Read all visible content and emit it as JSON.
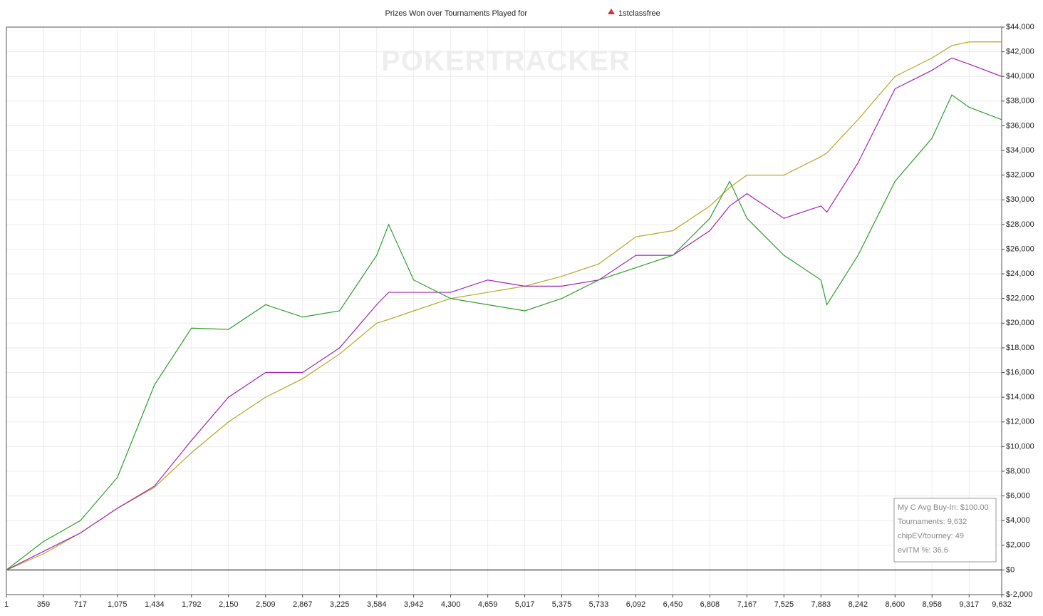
{
  "chart_data": {
    "type": "line",
    "title": "Prizes Won over Tournaments Played for",
    "player": "1stclassfree",
    "watermark": "POKERTRACKER",
    "stats": [
      "My C Avg Buy-In: $100.00",
      "Tournaments: 9,632",
      "chipEV/tourney: 49",
      "evITM %: 36.6"
    ],
    "x": [
      1,
      359,
      717,
      1075,
      1434,
      1792,
      2150,
      2509,
      2867,
      3225,
      3584,
      3700,
      3942,
      4300,
      4659,
      5017,
      5375,
      5733,
      6092,
      6450,
      6808,
      7000,
      7167,
      7525,
      7883,
      7940,
      8242,
      8600,
      8958,
      9150,
      9317,
      9632
    ],
    "series": [
      {
        "color": "#b5a824",
        "values": [
          0,
          1300,
          3000,
          5000,
          6700,
          9500,
          12000,
          14000,
          15500,
          17500,
          20000,
          20300,
          21000,
          22000,
          22500,
          23000,
          23800,
          24800,
          27000,
          27500,
          29500,
          31000,
          32000,
          32000,
          33500,
          33800,
          36500,
          40000,
          41500,
          42500,
          42800,
          42800
        ]
      },
      {
        "color": "#a424b4",
        "values": [
          0,
          1500,
          3000,
          5000,
          6800,
          10500,
          14000,
          16000,
          16000,
          18000,
          21500,
          22500,
          22500,
          22500,
          23500,
          23000,
          23000,
          23500,
          25500,
          25500,
          27500,
          29500,
          30500,
          28500,
          29500,
          29000,
          33000,
          39000,
          40500,
          41500,
          41000,
          40000
        ]
      },
      {
        "color": "#2ca02c",
        "values": [
          0,
          2300,
          4000,
          7500,
          15000,
          19600,
          19500,
          21500,
          20500,
          21000,
          25500,
          28000,
          23500,
          22000,
          21500,
          21000,
          22000,
          23500,
          24500,
          25500,
          28500,
          31500,
          28500,
          25500,
          23500,
          21500,
          25500,
          31500,
          35000,
          38500,
          37500,
          36500
        ]
      }
    ],
    "xlim": [
      1,
      9632
    ],
    "ylim": [
      -2000,
      44000
    ],
    "xticks": [
      1,
      359,
      717,
      {
        "value": 1075,
        "label": "1,075"
      },
      {
        "value": 1434,
        "label": "1,434"
      },
      {
        "value": 1792,
        "label": "1,792"
      },
      {
        "value": 2150,
        "label": "2,150"
      },
      {
        "value": 2509,
        "label": "2,509"
      },
      {
        "value": 2867,
        "label": "2,867"
      },
      {
        "value": 3225,
        "label": "3,225"
      },
      {
        "value": 3584,
        "label": "3,584"
      },
      {
        "value": 3942,
        "label": "3,942"
      },
      {
        "value": 4300,
        "label": "4,300"
      },
      {
        "value": 4659,
        "label": "4,659"
      },
      {
        "value": 5017,
        "label": "5,017"
      },
      {
        "value": 5375,
        "label": "5,375"
      },
      {
        "value": 5733,
        "label": "5,733"
      },
      {
        "value": 6092,
        "label": "6,092"
      },
      {
        "value": 6450,
        "label": "6,450"
      },
      {
        "value": 6808,
        "label": "6,808"
      },
      {
        "value": 7167,
        "label": "7,167"
      },
      {
        "value": 7525,
        "label": "7,525"
      },
      {
        "value": 7883,
        "label": "7,883"
      },
      {
        "value": 8242,
        "label": "8,242"
      },
      {
        "value": 8600,
        "label": "8,600"
      },
      {
        "value": 8958,
        "label": "8,958"
      },
      {
        "value": 9317,
        "label": "9,317"
      },
      {
        "value": 9632,
        "label": "9,632"
      }
    ],
    "yticks": [
      {
        "value": -2000,
        "label": "$-2,000"
      },
      {
        "value": 0,
        "label": "$0"
      },
      {
        "value": 2000,
        "label": "$2,000"
      },
      {
        "value": 4000,
        "label": "$4,000"
      },
      {
        "value": 6000,
        "label": "$6,000"
      },
      {
        "value": 8000,
        "label": "$8,000"
      },
      {
        "value": 10000,
        "label": "$10,000"
      },
      {
        "value": 12000,
        "label": "$12,000"
      },
      {
        "value": 14000,
        "label": "$14,000"
      },
      {
        "value": 16000,
        "label": "$16,000"
      },
      {
        "value": 18000,
        "label": "$18,000"
      },
      {
        "value": 20000,
        "label": "$20,000"
      },
      {
        "value": 22000,
        "label": "$22,000"
      },
      {
        "value": 24000,
        "label": "$24,000"
      },
      {
        "value": 26000,
        "label": "$26,000"
      },
      {
        "value": 28000,
        "label": "$28,000"
      },
      {
        "value": 30000,
        "label": "$30,000"
      },
      {
        "value": 32000,
        "label": "$32,000"
      },
      {
        "value": 34000,
        "label": "$34,000"
      },
      {
        "value": 36000,
        "label": "$36,000"
      },
      {
        "value": 38000,
        "label": "$38,000"
      },
      {
        "value": 40000,
        "label": "$40,000"
      },
      {
        "value": 42000,
        "label": "$42,000"
      },
      {
        "value": 44000,
        "label": "$44,000"
      }
    ],
    "grid": true
  }
}
